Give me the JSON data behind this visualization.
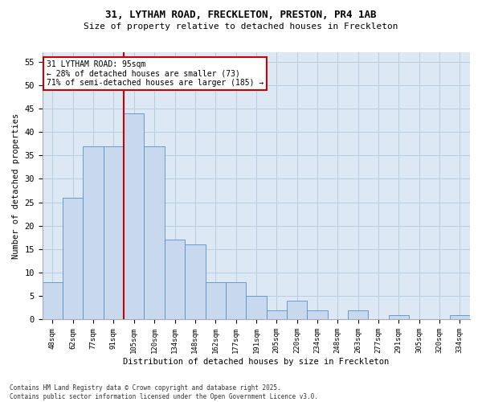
{
  "title_line1": "31, LYTHAM ROAD, FRECKLETON, PRESTON, PR4 1AB",
  "title_line2": "Size of property relative to detached houses in Freckleton",
  "xlabel": "Distribution of detached houses by size in Freckleton",
  "ylabel": "Number of detached properties",
  "categories": [
    "48sqm",
    "62sqm",
    "77sqm",
    "91sqm",
    "105sqm",
    "120sqm",
    "134sqm",
    "148sqm",
    "162sqm",
    "177sqm",
    "191sqm",
    "205sqm",
    "220sqm",
    "234sqm",
    "248sqm",
    "263sqm",
    "277sqm",
    "291sqm",
    "305sqm",
    "320sqm",
    "334sqm"
  ],
  "values": [
    8,
    26,
    37,
    37,
    44,
    37,
    17,
    16,
    8,
    8,
    5,
    2,
    4,
    2,
    0,
    2,
    0,
    1,
    0,
    0,
    1
  ],
  "bar_color": "#c8d9ef",
  "bar_edge_color": "#5a8fc3",
  "grid_color": "#b8cde0",
  "background_color": "#dce9f5",
  "vline_x": 3.5,
  "vline_color": "#cc0000",
  "annotation_text": "31 LYTHAM ROAD: 95sqm\n← 28% of detached houses are smaller (73)\n71% of semi-detached houses are larger (185) →",
  "annotation_box_color": "#cc0000",
  "footer_line1": "Contains HM Land Registry data © Crown copyright and database right 2025.",
  "footer_line2": "Contains public sector information licensed under the Open Government Licence v3.0.",
  "ylim": [
    0,
    57
  ],
  "yticks": [
    0,
    5,
    10,
    15,
    20,
    25,
    30,
    35,
    40,
    45,
    50,
    55
  ]
}
